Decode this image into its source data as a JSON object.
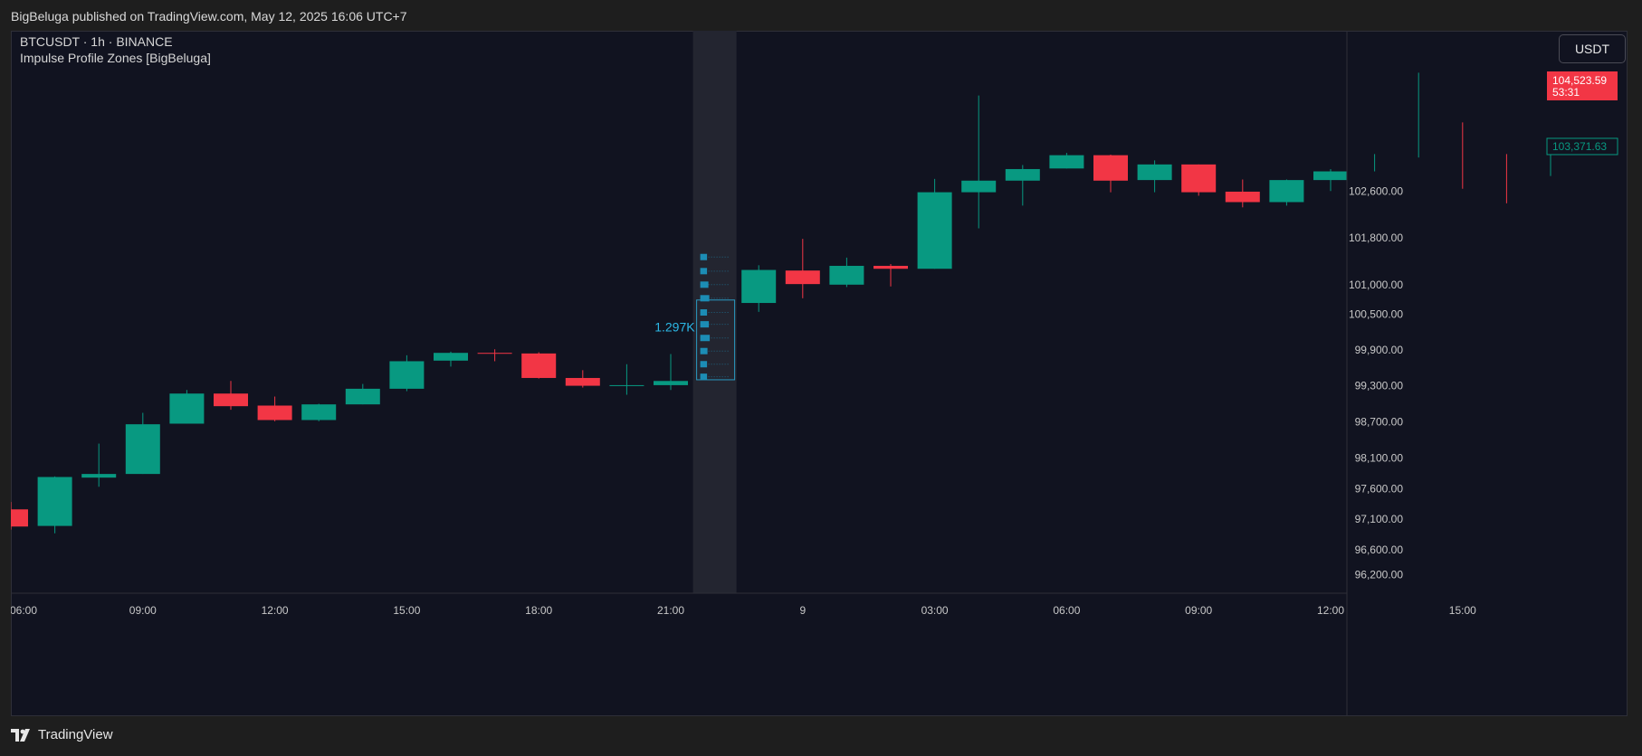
{
  "header": {
    "published_line": "BigBeluga published on TradingView.com, May 12, 2025 16:06 UTC+7"
  },
  "footer": {
    "brand": "TradingView"
  },
  "currency_button": "USDT",
  "chart_data": {
    "type": "candlestick",
    "symbol_line": "BTCUSDT · 1h · BINANCE",
    "indicator_line": "Impulse Profile Zones [BigBeluga]",
    "y_scale": "log",
    "y_ticks": [
      96200,
      96600,
      97100,
      97600,
      98100,
      98700,
      99300,
      99900,
      100500,
      101000,
      101800,
      102600
    ],
    "y_tick_labels": [
      "96,200.00",
      "96,600.00",
      "97,100.00",
      "97,600.00",
      "98,100.00",
      "98,700.00",
      "99,300.00",
      "99,900.00",
      "100,500.00",
      "101,000.00",
      "101,800.00",
      "102,600.00"
    ],
    "ylim": [
      95900,
      105400
    ],
    "x_tick_labels": [
      {
        "label": "06:00",
        "index": 0
      },
      {
        "label": "09:00",
        "index": 3
      },
      {
        "label": "12:00",
        "index": 6
      },
      {
        "label": "15:00",
        "index": 9
      },
      {
        "label": "18:00",
        "index": 12
      },
      {
        "label": "21:00",
        "index": 15
      },
      {
        "label": "9",
        "index": 18
      },
      {
        "label": "03:00",
        "index": 21
      },
      {
        "label": "06:00",
        "index": 24
      },
      {
        "label": "09:00",
        "index": 27
      },
      {
        "label": "12:00",
        "index": 30
      },
      {
        "label": "15:00",
        "index": 33
      }
    ],
    "candles": [
      {
        "i": 0,
        "o": 97260,
        "h": 97380,
        "l": 96930,
        "c": 96980
      },
      {
        "i": 1,
        "o": 96990,
        "h": 97800,
        "l": 96870,
        "c": 97790
      },
      {
        "i": 2,
        "o": 97780,
        "h": 98340,
        "l": 97630,
        "c": 97840
      },
      {
        "i": 3,
        "o": 97840,
        "h": 98850,
        "l": 97840,
        "c": 98660
      },
      {
        "i": 4,
        "o": 98670,
        "h": 99230,
        "l": 98670,
        "c": 99170
      },
      {
        "i": 5,
        "o": 99170,
        "h": 99380,
        "l": 98900,
        "c": 98960
      },
      {
        "i": 6,
        "o": 98970,
        "h": 99120,
        "l": 98710,
        "c": 98730
      },
      {
        "i": 7,
        "o": 98730,
        "h": 99000,
        "l": 98710,
        "c": 98990
      },
      {
        "i": 8,
        "o": 98990,
        "h": 99330,
        "l": 98990,
        "c": 99250
      },
      {
        "i": 9,
        "o": 99250,
        "h": 99810,
        "l": 99210,
        "c": 99710
      },
      {
        "i": 10,
        "o": 99720,
        "h": 99870,
        "l": 99620,
        "c": 99850
      },
      {
        "i": 11,
        "o": 99850,
        "h": 99910,
        "l": 99710,
        "c": 99840
      },
      {
        "i": 12,
        "o": 99840,
        "h": 99860,
        "l": 99420,
        "c": 99430
      },
      {
        "i": 13,
        "o": 99430,
        "h": 99560,
        "l": 99270,
        "c": 99300
      },
      {
        "i": 14,
        "o": 99300,
        "h": 99660,
        "l": 99150,
        "c": 99310
      },
      {
        "i": 15,
        "o": 99310,
        "h": 99830,
        "l": 99230,
        "c": 99380
      },
      {
        "i": 17,
        "o": 100690,
        "h": 101330,
        "l": 100540,
        "c": 101250
      },
      {
        "i": 18,
        "o": 101240,
        "h": 101780,
        "l": 100770,
        "c": 101010
      },
      {
        "i": 19,
        "o": 101000,
        "h": 101460,
        "l": 100960,
        "c": 101320
      },
      {
        "i": 20,
        "o": 101320,
        "h": 101350,
        "l": 100970,
        "c": 101270
      },
      {
        "i": 21,
        "o": 101270,
        "h": 102810,
        "l": 101270,
        "c": 102580
      },
      {
        "i": 22,
        "o": 102580,
        "h": 104260,
        "l": 101960,
        "c": 102780
      },
      {
        "i": 23,
        "o": 102780,
        "h": 103050,
        "l": 102350,
        "c": 102980
      },
      {
        "i": 24,
        "o": 102990,
        "h": 103260,
        "l": 102990,
        "c": 103220
      },
      {
        "i": 25,
        "o": 103220,
        "h": 103230,
        "l": 102580,
        "c": 102780
      },
      {
        "i": 26,
        "o": 102790,
        "h": 103130,
        "l": 102580,
        "c": 103060
      },
      {
        "i": 27,
        "o": 103060,
        "h": 103060,
        "l": 102520,
        "c": 102580
      },
      {
        "i": 28,
        "o": 102590,
        "h": 102800,
        "l": 102320,
        "c": 102410
      },
      {
        "i": 29,
        "o": 102410,
        "h": 102800,
        "l": 102350,
        "c": 102790
      },
      {
        "i": 30,
        "o": 102790,
        "h": 102980,
        "l": 102600,
        "c": 102940
      },
      {
        "i": 31,
        "o": 102950,
        "h": 103240,
        "l": 102940,
        "c": 103200
      },
      {
        "i": 32,
        "o": 103200,
        "h": 104660,
        "l": 103180,
        "c": 103540
      },
      {
        "i": 33,
        "o": 103530,
        "h": 103790,
        "l": 102640,
        "c": 102920
      },
      {
        "i": 34,
        "o": 102920,
        "h": 103240,
        "l": 102390,
        "c": 102860
      },
      {
        "i": 35,
        "o": 102860,
        "h": 103440,
        "l": 102860,
        "c": 103380
      }
    ],
    "impulse_zone": {
      "index": 16,
      "box_top": 100740,
      "box_bottom": 99400,
      "volume_label": "1.297K",
      "profile_levels": [
        {
          "price": 101470,
          "volume": 0.55
        },
        {
          "price": 101230,
          "volume": 0.55
        },
        {
          "price": 101000,
          "volume": 0.7
        },
        {
          "price": 100770,
          "volume": 0.8
        },
        {
          "price": 100530,
          "volume": 0.55
        },
        {
          "price": 100330,
          "volume": 0.75
        },
        {
          "price": 100100,
          "volume": 0.85
        },
        {
          "price": 99880,
          "volume": 0.6
        },
        {
          "price": 99660,
          "volume": 0.55
        },
        {
          "price": 99450,
          "volume": 0.55
        }
      ]
    },
    "price_labels": [
      {
        "value": 104523.59,
        "label": "104,523.59",
        "sub": "53:31",
        "color": "#f23645"
      },
      {
        "value": 103371.63,
        "label": "103,371.63",
        "color": "#089981"
      }
    ],
    "colors": {
      "up": "#089981",
      "down": "#f23645",
      "zone_band": "#232530",
      "profile": "#1c8db5",
      "zone_label": "#2cb8e6"
    }
  }
}
